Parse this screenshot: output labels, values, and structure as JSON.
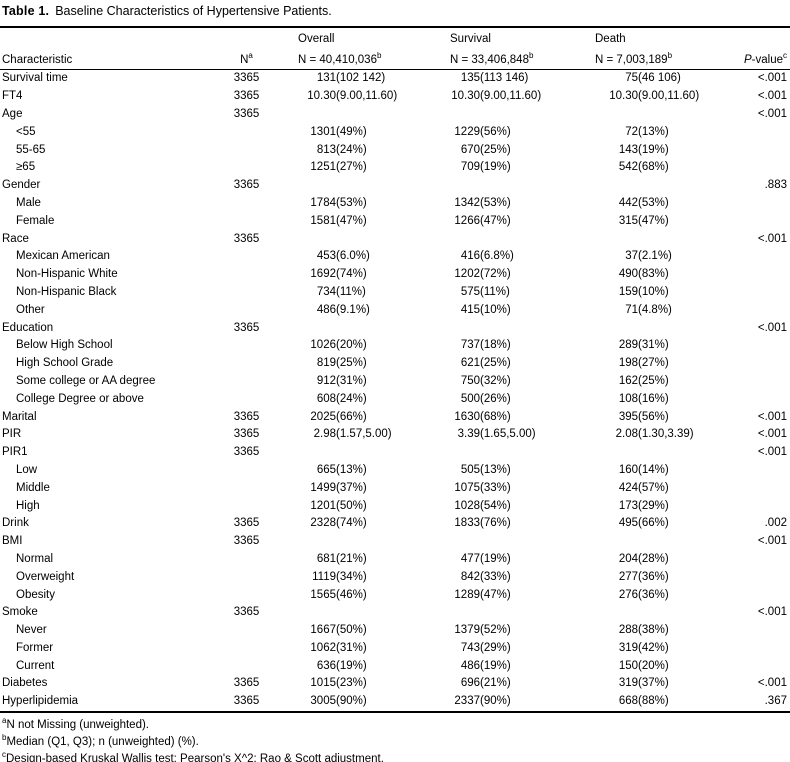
{
  "title": {
    "bold": "Table 1.",
    "text": "Baseline Characteristics of Hypertensive Patients."
  },
  "table": {
    "header": {
      "characteristic": "Characteristic",
      "n": {
        "label": "N",
        "sup": "a"
      },
      "groups": [
        {
          "title": "Overall",
          "n": "N = 40,410,036",
          "sup": "b"
        },
        {
          "title": "Survival",
          "n": "N = 33,406,848",
          "sup": "b"
        },
        {
          "title": "Death",
          "n": "N = 7,003,189",
          "sup": "b"
        }
      ],
      "p": {
        "italic": "P",
        "rest": "-value",
        "sup": "c"
      }
    },
    "rows": [
      {
        "label": "Survival time",
        "indent": false,
        "n": "3365",
        "overall": "131(102 142)",
        "survival": "135(113 146)",
        "death": "75(46 106)",
        "p": "<.001"
      },
      {
        "label": "FT4",
        "indent": false,
        "n": "3365",
        "overall": "10.30(9.00,11.60)",
        "survival": "10.30(9.00,11.60)",
        "death": "10.30(9.00,11.60)",
        "p": "<.001"
      },
      {
        "label": "Age",
        "indent": false,
        "n": "3365",
        "overall": "",
        "survival": "",
        "death": "",
        "p": "<.001"
      },
      {
        "label": "<55",
        "indent": true,
        "n": "",
        "overall": "1301(49%)",
        "survival": "1229(56%)",
        "death": "72(13%)",
        "p": ""
      },
      {
        "label": "55-65",
        "indent": true,
        "n": "",
        "overall": "813(24%)",
        "survival": "670(25%)",
        "death": "143(19%)",
        "p": ""
      },
      {
        "label": "≥65",
        "indent": true,
        "n": "",
        "overall": "1251(27%)",
        "survival": "709(19%)",
        "death": "542(68%)",
        "p": ""
      },
      {
        "label": "Gender",
        "indent": false,
        "n": "3365",
        "overall": "",
        "survival": "",
        "death": "",
        "p": ".883"
      },
      {
        "label": "Male",
        "indent": true,
        "n": "",
        "overall": "1784(53%)",
        "survival": "1342(53%)",
        "death": "442(53%)",
        "p": ""
      },
      {
        "label": "Female",
        "indent": true,
        "n": "",
        "overall": "1581(47%)",
        "survival": "1266(47%)",
        "death": "315(47%)",
        "p": ""
      },
      {
        "label": "Race",
        "indent": false,
        "n": "3365",
        "overall": "",
        "survival": "",
        "death": "",
        "p": "<.001"
      },
      {
        "label": "Mexican American",
        "indent": true,
        "n": "",
        "overall": "453(6.0%)",
        "survival": "416(6.8%)",
        "death": "37(2.1%)",
        "p": ""
      },
      {
        "label": "Non-Hispanic White",
        "indent": true,
        "n": "",
        "overall": "1692(74%)",
        "survival": "1202(72%)",
        "death": "490(83%)",
        "p": ""
      },
      {
        "label": "Non-Hispanic Black",
        "indent": true,
        "n": "",
        "overall": "734(11%)",
        "survival": "575(11%)",
        "death": "159(10%)",
        "p": ""
      },
      {
        "label": "Other",
        "indent": true,
        "n": "",
        "overall": "486(9.1%)",
        "survival": "415(10%)",
        "death": "71(4.8%)",
        "p": ""
      },
      {
        "label": "Education",
        "indent": false,
        "n": "3365",
        "overall": "",
        "survival": "",
        "death": "",
        "p": "<.001"
      },
      {
        "label": "Below High School",
        "indent": true,
        "n": "",
        "overall": "1026(20%)",
        "survival": "737(18%)",
        "death": "289(31%)",
        "p": ""
      },
      {
        "label": "High School Grade",
        "indent": true,
        "n": "",
        "overall": "819(25%)",
        "survival": "621(25%)",
        "death": "198(27%)",
        "p": ""
      },
      {
        "label": "Some college or AA degree",
        "indent": true,
        "n": "",
        "overall": "912(31%)",
        "survival": "750(32%)",
        "death": "162(25%)",
        "p": ""
      },
      {
        "label": "College Degree or above",
        "indent": true,
        "n": "",
        "overall": "608(24%)",
        "survival": "500(26%)",
        "death": "108(16%)",
        "p": ""
      },
      {
        "label": "Marital",
        "indent": false,
        "n": "3365",
        "overall": "2025(66%)",
        "survival": "1630(68%)",
        "death": "395(56%)",
        "p": "<.001"
      },
      {
        "label": "PIR",
        "indent": false,
        "n": "3365",
        "overall": "2.98(1.57,5.00)",
        "survival": "3.39(1.65,5.00)",
        "death": "2.08(1.30,3.39)",
        "p": "<.001"
      },
      {
        "label": "PIR1",
        "indent": false,
        "n": "3365",
        "overall": "",
        "survival": "",
        "death": "",
        "p": "<.001"
      },
      {
        "label": "Low",
        "indent": true,
        "n": "",
        "overall": "665(13%)",
        "survival": "505(13%)",
        "death": "160(14%)",
        "p": ""
      },
      {
        "label": "Middle",
        "indent": true,
        "n": "",
        "overall": "1499(37%)",
        "survival": "1075(33%)",
        "death": "424(57%)",
        "p": ""
      },
      {
        "label": "High",
        "indent": true,
        "n": "",
        "overall": "1201(50%)",
        "survival": "1028(54%)",
        "death": "173(29%)",
        "p": ""
      },
      {
        "label": "Drink",
        "indent": false,
        "n": "3365",
        "overall": "2328(74%)",
        "survival": "1833(76%)",
        "death": "495(66%)",
        "p": ".002"
      },
      {
        "label": "BMI",
        "indent": false,
        "n": "3365",
        "overall": "",
        "survival": "",
        "death": "",
        "p": "<.001"
      },
      {
        "label": "Normal",
        "indent": true,
        "n": "",
        "overall": "681(21%)",
        "survival": "477(19%)",
        "death": "204(28%)",
        "p": ""
      },
      {
        "label": "Overweight",
        "indent": true,
        "n": "",
        "overall": "1119(34%)",
        "survival": "842(33%)",
        "death": "277(36%)",
        "p": ""
      },
      {
        "label": "Obesity",
        "indent": true,
        "n": "",
        "overall": "1565(46%)",
        "survival": "1289(47%)",
        "death": "276(36%)",
        "p": ""
      },
      {
        "label": "Smoke",
        "indent": false,
        "n": "3365",
        "overall": "",
        "survival": "",
        "death": "",
        "p": "<.001"
      },
      {
        "label": "Never",
        "indent": true,
        "n": "",
        "overall": "1667(50%)",
        "survival": "1379(52%)",
        "death": "288(38%)",
        "p": ""
      },
      {
        "label": "Former",
        "indent": true,
        "n": "",
        "overall": "1062(31%)",
        "survival": "743(29%)",
        "death": "319(42%)",
        "p": ""
      },
      {
        "label": "Current",
        "indent": true,
        "n": "",
        "overall": "636(19%)",
        "survival": "486(19%)",
        "death": "150(20%)",
        "p": ""
      },
      {
        "label": "Diabetes",
        "indent": false,
        "n": "3365",
        "overall": "1015(23%)",
        "survival": "696(21%)",
        "death": "319(37%)",
        "p": "<.001"
      },
      {
        "label": "Hyperlipidemia",
        "indent": false,
        "n": "3365",
        "overall": "3005(90%)",
        "survival": "2337(90%)",
        "death": "668(88%)",
        "p": ".367"
      }
    ]
  },
  "footnotes": [
    {
      "sup": "a",
      "text": "N not Missing (unweighted)."
    },
    {
      "sup": "b",
      "text": "Median (Q1, Q3); n (unweighted) (%)."
    },
    {
      "sup": "c",
      "text": "Design-based Kruskal Wallis test; Pearson's X^2: Rao & Scott adjustment."
    }
  ],
  "colors": {
    "text": "#000000",
    "background": "#ffffff",
    "rule": "#000000"
  }
}
